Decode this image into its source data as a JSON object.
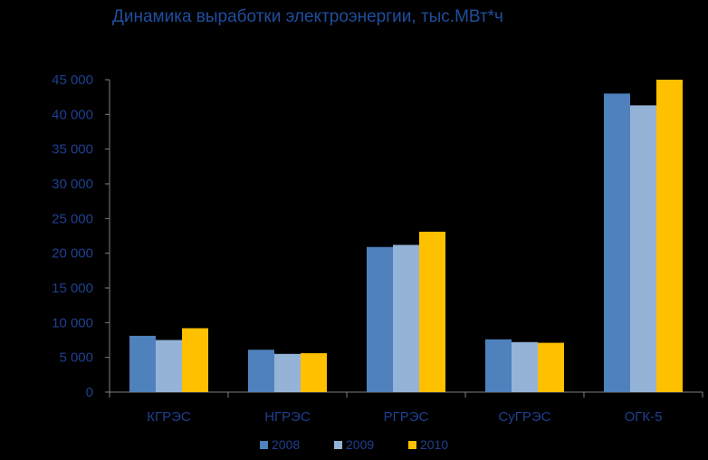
{
  "chart_data": {
    "type": "bar",
    "title": "Динамика выработки электроэнергии, тыс.МВт*ч",
    "categories": [
      "КГРЭС",
      "НГРЭС",
      "РГРЭС",
      "СуГРЭС",
      "ОГК-5"
    ],
    "series": [
      {
        "name": "2008",
        "color": "#4F81BD",
        "values": [
          8100,
          6100,
          20900,
          7600,
          43000
        ]
      },
      {
        "name": "2009",
        "color": "#95B3D7",
        "values": [
          7500,
          5500,
          21200,
          7200,
          41300
        ]
      },
      {
        "name": "2010",
        "color": "#FFC000",
        "values": [
          9200,
          5600,
          23100,
          7100,
          45000
        ]
      }
    ],
    "yticks": [
      "0",
      "5 000",
      "10 000",
      "15 000",
      "20 000",
      "25 000",
      "30 000",
      "35 000",
      "40 000",
      "45 000"
    ],
    "ylim": [
      0,
      45000
    ],
    "ystep": 5000,
    "grid": false,
    "legend": "bottom-center"
  }
}
